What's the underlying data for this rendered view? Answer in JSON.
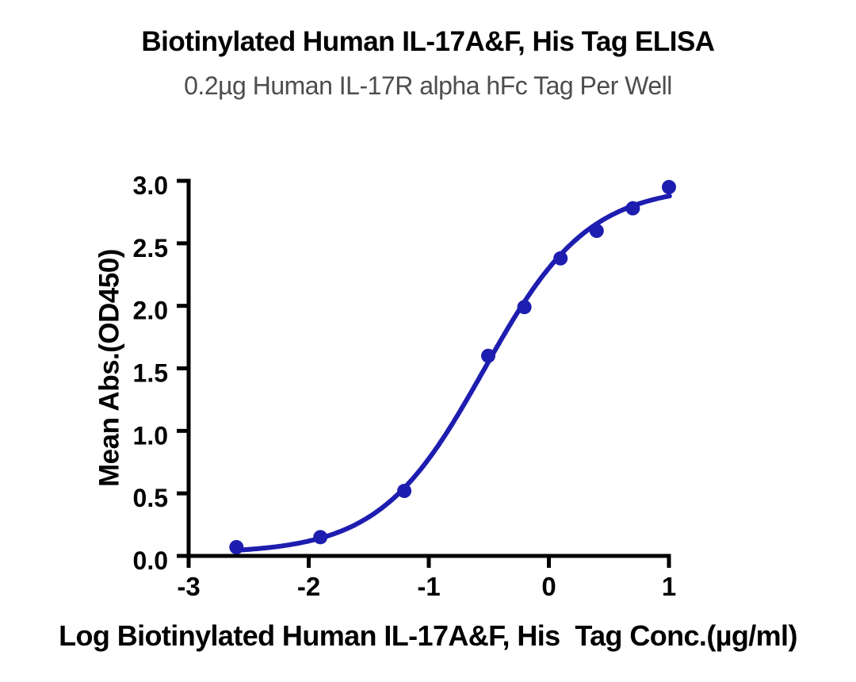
{
  "chart_data": {
    "type": "scatter",
    "title": "Biotinylated Human IL-17A&F, His Tag ELISA",
    "subtitle": "0.2µg Human IL-17R alpha hFc Tag Per Well",
    "xlabel": "Log Biotinylated Human IL-17A&F, His  Tag Conc.(µg/ml)",
    "ylabel": "Mean Abs.(OD450)",
    "x": [
      -2.602,
      -1.903,
      -1.204,
      -0.505,
      -0.204,
      0.097,
      0.398,
      0.699,
      1.0
    ],
    "y": [
      0.07,
      0.15,
      0.52,
      1.6,
      1.99,
      2.38,
      2.6,
      2.78,
      2.95
    ],
    "xlim": [
      -3,
      1
    ],
    "ylim": [
      0,
      3
    ],
    "x_ticks": [
      -3,
      -2,
      -1,
      0,
      1
    ],
    "x_tick_labels": [
      "-3",
      "-2",
      "-1",
      "0",
      "1"
    ],
    "y_ticks": [
      0,
      0.5,
      1,
      1.5,
      2,
      2.5,
      3
    ],
    "y_tick_labels": [
      "0.0",
      "0.5",
      "1.0",
      "1.5",
      "2.0",
      "2.5",
      "3.0"
    ],
    "grid": false,
    "legend": "none",
    "curve_fit": {
      "model": "4PL",
      "bottom": 0.02,
      "top": 2.96,
      "log_ec50": -0.54,
      "hill": 1.0,
      "x_start": -2.61,
      "x_end": 1.005
    },
    "colors": {
      "curve": "#1d1db0",
      "point": "#1d1db0",
      "axis": "#000000",
      "title": "#000000",
      "subtitle": "#4d4d4d"
    }
  }
}
